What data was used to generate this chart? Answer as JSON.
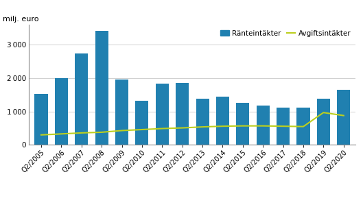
{
  "categories": [
    "Q2/2005",
    "Q2/2006",
    "Q2/2007",
    "Q2/2008",
    "Q2/2009",
    "Q2/2010",
    "Q2/2011",
    "Q2/2012",
    "Q2/2013",
    "Q2/2014",
    "Q2/2015",
    "Q2/2016",
    "Q2/2017",
    "Q2/2018",
    "Q2/2019",
    "Q2/2020"
  ],
  "ranteintakter": [
    1520,
    2000,
    2750,
    3420,
    1970,
    1320,
    1830,
    1860,
    1380,
    1440,
    1260,
    1180,
    1110,
    1120,
    1380,
    1650
  ],
  "avgiftsintakter": [
    300,
    330,
    360,
    380,
    430,
    460,
    490,
    510,
    540,
    560,
    570,
    570,
    560,
    550,
    970,
    880
  ],
  "bar_color": "#2080b0",
  "line_color": "#bccf1e",
  "ylabel": "milj. euro",
  "ylim": [
    0,
    3600
  ],
  "yticks": [
    0,
    1000,
    2000,
    3000
  ],
  "legend_bar_label": "Ränteintäkter",
  "legend_line_label": "Avgiftsintäkter",
  "background_color": "#ffffff",
  "grid_color": "#d0d0d0"
}
